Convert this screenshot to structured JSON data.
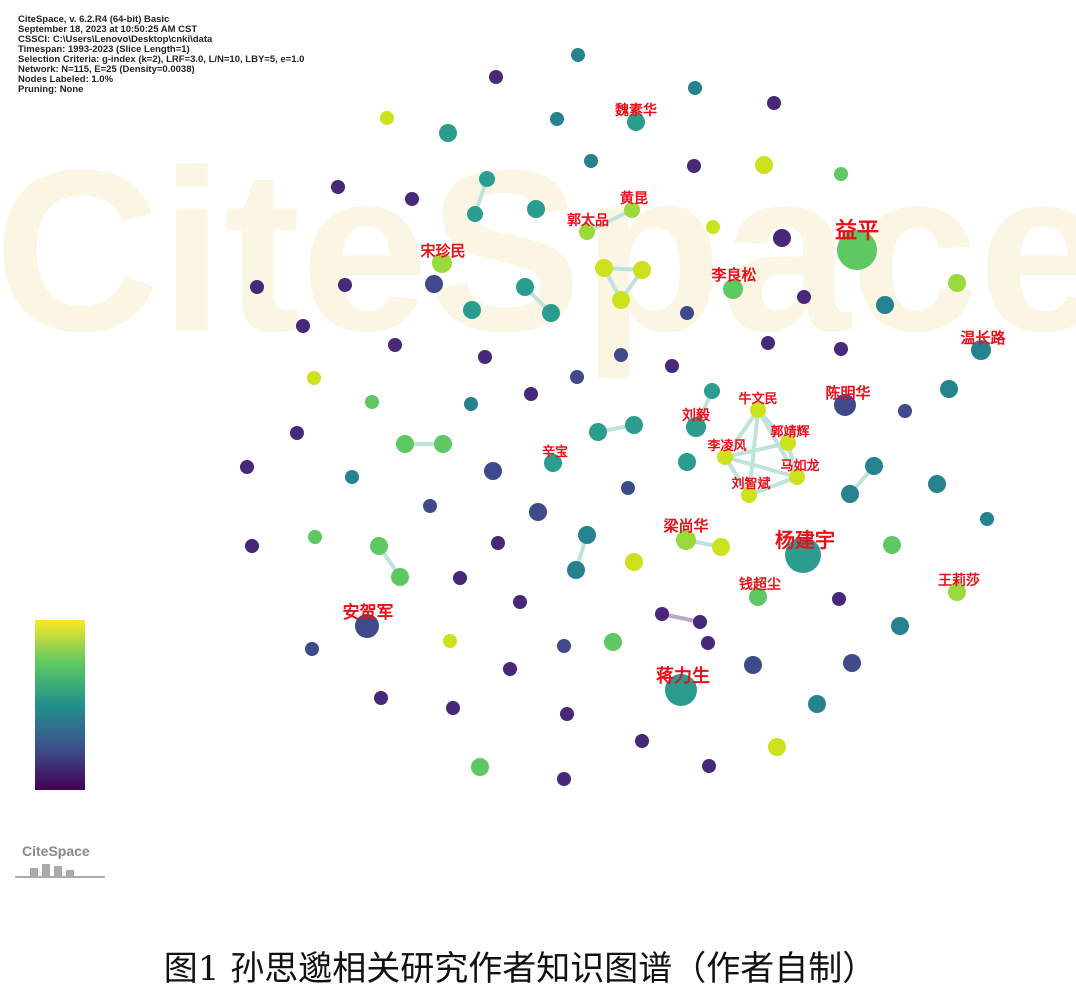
{
  "header": {
    "lines": [
      "CiteSpace, v. 6.2.R4 (64-bit) Basic",
      "September 18, 2023 at 10:50:25 AM CST",
      "CSSCI: C:\\Users\\Lenovo\\Desktop\\cnki\\data",
      "Timespan: 1993-2023 (Slice Length=1)",
      "Selection Criteria: g-index (k=2), LRF=3.0, L/N=10, LBY=5, e=1.0",
      "Network: N=115, E=25 (Density=0.0038)",
      "Nodes Labeled: 1.0%",
      "Pruning: None"
    ]
  },
  "watermark": "CiteSpace",
  "nodes": [
    {
      "label": "魏素华"
    },
    {
      "label": "黄昆"
    },
    {
      "label": "郭太品"
    },
    {
      "label": "宋珍民"
    },
    {
      "label": "益平"
    },
    {
      "label": "李良松"
    },
    {
      "label": "温长路"
    },
    {
      "label": "陈明华"
    },
    {
      "label": "牛文民"
    },
    {
      "label": "刘毅"
    },
    {
      "label": "郭靖辉"
    },
    {
      "label": "李凌风"
    },
    {
      "label": "马如龙"
    },
    {
      "label": "刘智斌"
    },
    {
      "label": "辛宝"
    },
    {
      "label": "梁尚华"
    },
    {
      "label": "杨建宇"
    },
    {
      "label": "钱超尘"
    },
    {
      "label": "王莉莎"
    },
    {
      "label": "安贺军"
    },
    {
      "label": "蒋力生"
    }
  ],
  "logo": "CiteSpace",
  "caption": "图1 孙思邈相关研究作者知识图谱（作者自制）"
}
